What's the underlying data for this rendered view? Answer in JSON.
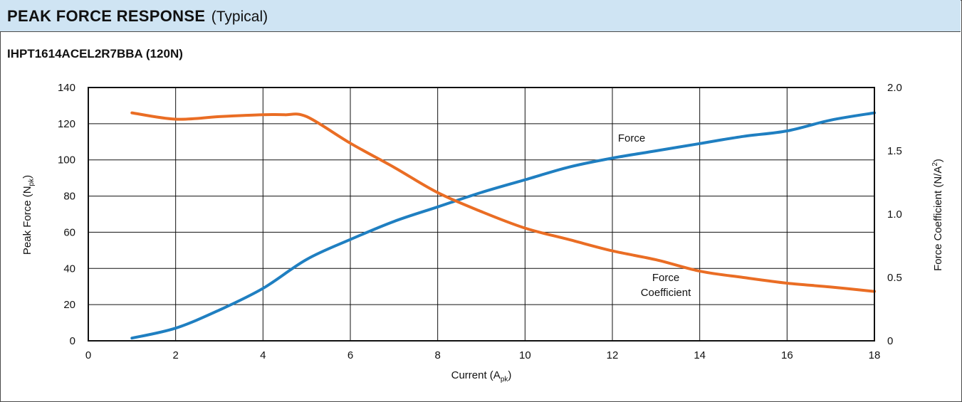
{
  "header": {
    "title": "PEAK FORCE RESPONSE",
    "subtitle": "(Typical)"
  },
  "chart_data": {
    "type": "line",
    "title": "IHPT1614ACEL2R7BBA (120N)",
    "xlabel": "Current (A",
    "xlabel_sub": "pk",
    "ylabel": "Peak Force (N",
    "ylabel_sub": "pk",
    "y2label": "Force Coefficient (N/A",
    "y2label_sup": "2",
    "xlim": [
      0,
      18
    ],
    "ylim": [
      0,
      140
    ],
    "y2lim": [
      0,
      2.0
    ],
    "xticks": [
      "0",
      "2",
      "4",
      "6",
      "8",
      "10",
      "12",
      "14",
      "16",
      "18"
    ],
    "yticks": [
      "0",
      "20",
      "40",
      "60",
      "80",
      "100",
      "120",
      "140"
    ],
    "y2ticks": [
      "0",
      "0.5",
      "1.0",
      "1.5",
      "2.0"
    ],
    "grid": true,
    "series": [
      {
        "name": "Force",
        "axis": "left",
        "color": "#1f7fc1",
        "x": [
          1,
          2,
          3,
          4,
          5,
          6,
          7,
          8,
          9,
          10,
          11,
          12,
          13,
          14,
          15,
          16,
          17,
          18
        ],
        "y": [
          1.5,
          7,
          17,
          29,
          45,
          56,
          66,
          74,
          82,
          89,
          96,
          101,
          105,
          109,
          113,
          116,
          122,
          126
        ]
      },
      {
        "name": "Force Coefficient",
        "axis": "right",
        "color": "#ea6d24",
        "x": [
          1,
          2,
          3,
          4,
          4.5,
          5,
          6,
          7,
          8,
          9,
          10,
          11,
          12,
          13,
          14,
          15,
          16,
          17,
          18
        ],
        "y": [
          1.8,
          1.75,
          1.77,
          1.785,
          1.785,
          1.77,
          1.56,
          1.37,
          1.17,
          1.02,
          0.89,
          0.8,
          0.71,
          0.64,
          0.55,
          0.5,
          0.455,
          0.425,
          0.39
        ]
      }
    ],
    "annotations": [
      {
        "text": "Force",
        "series": "Force"
      },
      {
        "text": "Force",
        "series": "Force Coefficient"
      },
      {
        "text": "Coefficient",
        "series": "Force Coefficient"
      }
    ]
  }
}
